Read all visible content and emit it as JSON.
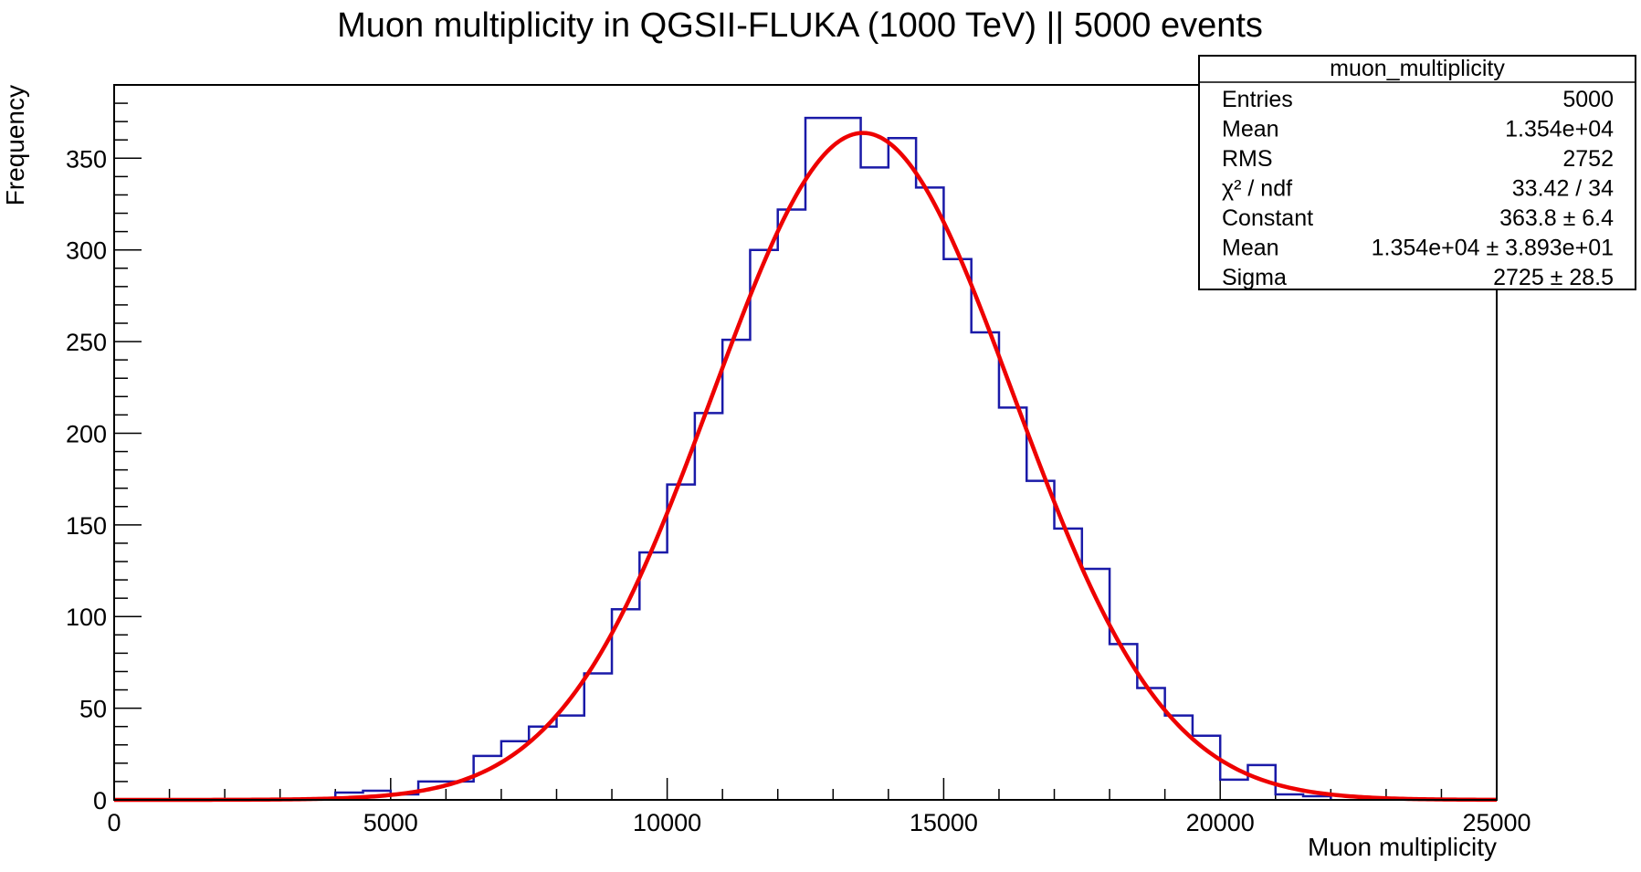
{
  "chart_data": {
    "type": "histogram",
    "title": "Muon multiplicity in QGSII-FLUKA (1000 TeV)  || 5000 events",
    "xlabel": "Muon multiplicity",
    "ylabel": "Frequency",
    "xlim": [
      0,
      25000
    ],
    "ylim": [
      0,
      390
    ],
    "x_ticks": [
      0,
      5000,
      10000,
      15000,
      20000,
      25000
    ],
    "y_ticks": [
      0,
      50,
      100,
      150,
      200,
      250,
      300,
      350
    ],
    "grid": false,
    "bin_width": 500,
    "bin_starts": [
      4000,
      4500,
      5000,
      5500,
      6000,
      6500,
      7000,
      7500,
      8000,
      8500,
      9000,
      9500,
      10000,
      10500,
      11000,
      11500,
      12000,
      12500,
      13000,
      13500,
      14000,
      14500,
      15000,
      15500,
      16000,
      16500,
      17000,
      17500,
      18000,
      18500,
      19000,
      19500,
      20000,
      20500,
      21000,
      21500
    ],
    "counts": [
      4,
      5,
      3,
      10,
      10,
      24,
      32,
      40,
      46,
      69,
      104,
      135,
      172,
      211,
      251,
      300,
      322,
      372,
      372,
      345,
      361,
      334,
      295,
      255,
      214,
      174,
      148,
      126,
      85,
      61,
      46,
      35,
      11,
      19,
      3,
      2
    ],
    "histogram_color": "#1a1aa8",
    "fit": {
      "type": "gaussian",
      "color": "#ee0000",
      "constant": 363.8,
      "mean": 13540,
      "sigma": 2725
    },
    "stats_box": {
      "title": "muon_multiplicity",
      "placement": "top-right",
      "rows": [
        {
          "label": "Entries",
          "value": "5000"
        },
        {
          "label": "Mean",
          "value": "1.354e+04"
        },
        {
          "label": "RMS",
          "value": "2752"
        },
        {
          "label": "χ² / ndf",
          "value": "33.42 / 34"
        },
        {
          "label": "Constant",
          "value": "363.8 ± 6.4"
        },
        {
          "label": "Mean",
          "value": "1.354e+04 ± 3.893e+01"
        },
        {
          "label": "Sigma",
          "value": "2725 ± 28.5"
        }
      ]
    }
  }
}
